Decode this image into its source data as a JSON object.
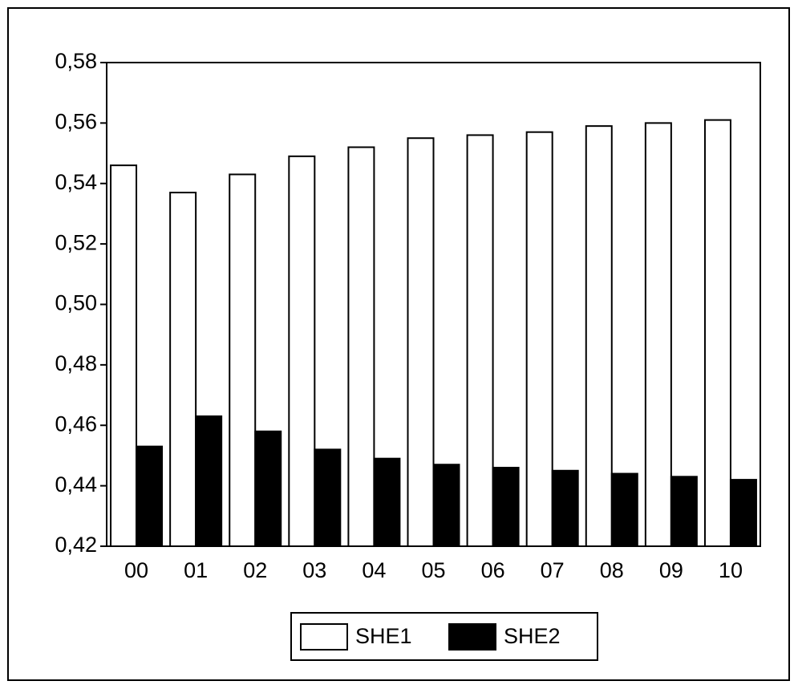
{
  "chart_data": {
    "type": "bar",
    "categories": [
      "00",
      "01",
      "02",
      "03",
      "04",
      "05",
      "06",
      "07",
      "08",
      "09",
      "10"
    ],
    "series": [
      {
        "name": "SHE1",
        "color": "#ffffff",
        "values": [
          0.546,
          0.537,
          0.543,
          0.549,
          0.552,
          0.555,
          0.556,
          0.557,
          0.559,
          0.56,
          0.561
        ]
      },
      {
        "name": "SHE2",
        "color": "#000000",
        "values": [
          0.453,
          0.463,
          0.458,
          0.452,
          0.449,
          0.447,
          0.446,
          0.445,
          0.444,
          0.443,
          0.442
        ]
      }
    ],
    "ylim": [
      0.42,
      0.58
    ],
    "yticks": [
      {
        "value": 0.42,
        "label": "0,42"
      },
      {
        "value": 0.44,
        "label": "0,44"
      },
      {
        "value": 0.46,
        "label": "0,46"
      },
      {
        "value": 0.48,
        "label": "0,48"
      },
      {
        "value": 0.5,
        "label": "0,50"
      },
      {
        "value": 0.52,
        "label": "0,52"
      },
      {
        "value": 0.54,
        "label": "0,54"
      },
      {
        "value": 0.56,
        "label": "0,56"
      },
      {
        "value": 0.58,
        "label": "0,58"
      }
    ],
    "legend": "bottom"
  }
}
